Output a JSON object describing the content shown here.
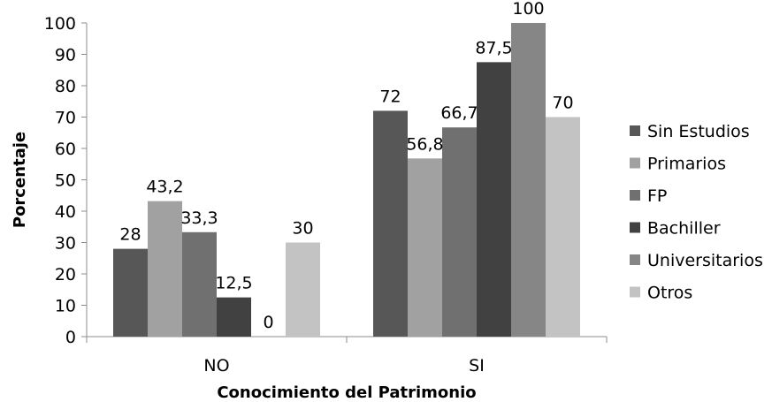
{
  "chart_data": {
    "type": "bar",
    "categories": [
      "NO",
      "SI"
    ],
    "series": [
      {
        "name": "Sin Estudios",
        "values": [
          28,
          72
        ],
        "color": "#575757",
        "labels": [
          "28",
          "72"
        ]
      },
      {
        "name": "Primarios",
        "values": [
          43.2,
          56.8
        ],
        "color": "#a1a1a1",
        "labels": [
          "43,2",
          "56,8"
        ]
      },
      {
        "name": "FP",
        "values": [
          33.3,
          66.7
        ],
        "color": "#707070",
        "labels": [
          "33,3",
          "66,7"
        ]
      },
      {
        "name": "Bachiller",
        "values": [
          12.5,
          87.5
        ],
        "color": "#414141",
        "labels": [
          "12,5",
          "87,5"
        ]
      },
      {
        "name": "Universitarios",
        "values": [
          0,
          100
        ],
        "color": "#868686",
        "labels": [
          "0",
          "100"
        ]
      },
      {
        "name": "Otros",
        "values": [
          30,
          70
        ],
        "color": "#c3c3c3",
        "labels": [
          "30",
          "70"
        ]
      }
    ],
    "title": "",
    "xlabel": "Conocimiento del Patrimonio",
    "ylabel": "Porcentaje",
    "ylim": [
      0,
      100
    ],
    "yticks": [
      0,
      10,
      20,
      30,
      40,
      50,
      60,
      70,
      80,
      90,
      100
    ],
    "grid": false,
    "legend_position": "right"
  }
}
